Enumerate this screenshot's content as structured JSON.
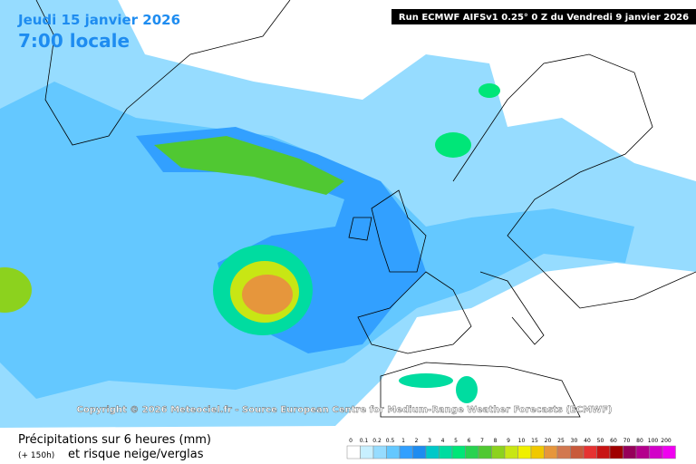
{
  "header": {
    "date": "Jeudi 15 janvier 2026",
    "time": "7:00 locale",
    "run": "Run ECMWF AIFSv1 0.25° 0 Z du Vendredi 9 janvier 2026"
  },
  "copyright": "Copyright © 2026 Meteociel.fr - Source European Centre for Medium-Range Weather Forecasts (ECMWF)",
  "legend": {
    "title": "Précipitations sur 6 heures (mm)",
    "lead": "(+ 150h)",
    "subtitle": "et risque neige/verglas",
    "scale": [
      {
        "label": "0",
        "color": "#ffffff"
      },
      {
        "label": "0.1",
        "color": "#c8f0ff"
      },
      {
        "label": "0.2",
        "color": "#96dcff"
      },
      {
        "label": "0.5",
        "color": "#64c8ff"
      },
      {
        "label": "1",
        "color": "#32a0ff"
      },
      {
        "label": "2",
        "color": "#1e8cf0"
      },
      {
        "label": "3",
        "color": "#00c8c8"
      },
      {
        "label": "4",
        "color": "#00dca0"
      },
      {
        "label": "5",
        "color": "#00e678"
      },
      {
        "label": "6",
        "color": "#28d250"
      },
      {
        "label": "7",
        "color": "#50c832"
      },
      {
        "label": "8",
        "color": "#8cd21e"
      },
      {
        "label": "9",
        "color": "#c8e614"
      },
      {
        "label": "10",
        "color": "#f0f000"
      },
      {
        "label": "15",
        "color": "#f0c800"
      },
      {
        "label": "20",
        "color": "#e6963c"
      },
      {
        "label": "25",
        "color": "#d27850"
      },
      {
        "label": "30",
        "color": "#c85a3c"
      },
      {
        "label": "40",
        "color": "#e63232"
      },
      {
        "label": "50",
        "color": "#c81414"
      },
      {
        "label": "60",
        "color": "#a00000"
      },
      {
        "label": "70",
        "color": "#96005a"
      },
      {
        "label": "80",
        "color": "#b4008c"
      },
      {
        "label": "100",
        "color": "#d200c8"
      },
      {
        "label": "200",
        "color": "#f000f0"
      }
    ]
  }
}
